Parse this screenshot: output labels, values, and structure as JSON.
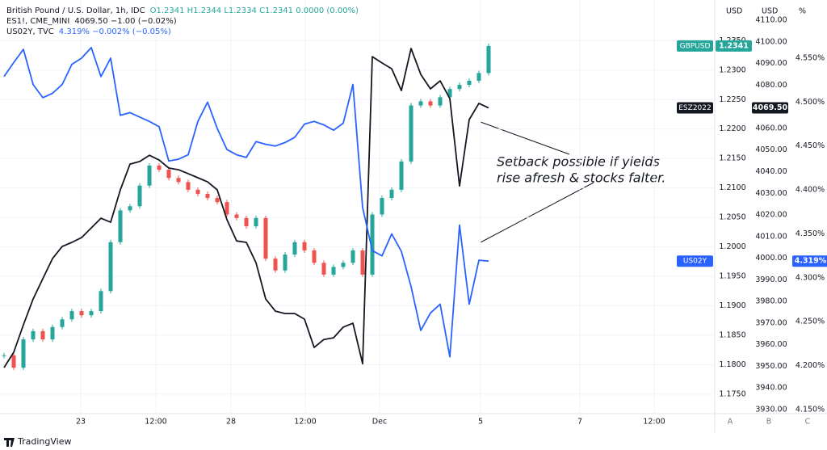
{
  "chart_data": {
    "type": "line",
    "legend_lines": [
      {
        "name": "British Pound / U.S. Dollar, 1h, IDC",
        "quote": "O1.2341 H1.2344 L1.2334 C1.2341 0.0000 (0.00%)",
        "color": "#26a69a"
      },
      {
        "name": "ES1!, CME_MINI",
        "quote": "4069.50 −1.00 (−0.02%)",
        "color": "#131722"
      },
      {
        "name": "US02Y, TVC",
        "quote": "4.319% −0.002% (−0.05%)",
        "color": "#2962ff"
      }
    ],
    "x_labels": [
      "23",
      "12:00",
      "28",
      "12:00",
      "Dec",
      "5",
      "7",
      "12:00"
    ],
    "axis_units": [
      "USD",
      "USD",
      "%"
    ],
    "axis_buttons": [
      "A",
      "B",
      "C"
    ],
    "annotations": [
      "Setback possible if yields",
      "rise afresh & stocks falter."
    ],
    "watermark": "TradingView",
    "grid": true,
    "ylim": [
      1.1717,
      1.2419
    ],
    "yticks": [
      {
        "value": 1.175,
        "label": "1.1750"
      },
      {
        "value": 1.18,
        "label": "1.1800"
      },
      {
        "value": 1.185,
        "label": "1.1850"
      },
      {
        "value": 1.19,
        "label": "1.1900"
      },
      {
        "value": 1.195,
        "label": "1.1950"
      },
      {
        "value": 1.2,
        "label": "1.2000"
      },
      {
        "value": 1.205,
        "label": "1.2050"
      },
      {
        "value": 1.21,
        "label": "1.2100"
      },
      {
        "value": 1.215,
        "label": "1.2150"
      },
      {
        "value": 1.22,
        "label": "1.2200"
      },
      {
        "value": 1.225,
        "label": "1.2250"
      },
      {
        "value": 1.23,
        "label": "1.2300"
      },
      {
        "value": 1.235,
        "label": "1.2350"
      }
    ],
    "y2lim": [
      3928.1,
      4119.4
    ],
    "y2ticks": [
      {
        "value": 3930,
        "label": "3930.00"
      },
      {
        "value": 3940,
        "label": "3940.00"
      },
      {
        "value": 3950,
        "label": "3950.00"
      },
      {
        "value": 3960,
        "label": "3960.00"
      },
      {
        "value": 3970,
        "label": "3970.00"
      },
      {
        "value": 3980,
        "label": "3980.00"
      },
      {
        "value": 3990,
        "label": "3990.00"
      },
      {
        "value": 4000,
        "label": "4000.00"
      },
      {
        "value": 4010,
        "label": "4010.00"
      },
      {
        "value": 4020,
        "label": "4020.00"
      },
      {
        "value": 4030,
        "label": "4030.00"
      },
      {
        "value": 4040,
        "label": "4040.00"
      },
      {
        "value": 4050,
        "label": "4050.00"
      },
      {
        "value": 4060,
        "label": "4060.00"
      },
      {
        "value": 4070,
        "label": "4070.00"
      },
      {
        "value": 4080,
        "label": "4080.00"
      },
      {
        "value": 4090,
        "label": "4090.00"
      },
      {
        "value": 4100,
        "label": "4100.00"
      },
      {
        "value": 4110,
        "label": "4110.00"
      }
    ],
    "y3lim": [
      4.1454,
      4.6162
    ],
    "y3ticks": [
      {
        "value": 4.15,
        "label": "4.150%"
      },
      {
        "value": 4.2,
        "label": "4.200%"
      },
      {
        "value": 4.25,
        "label": "4.250%"
      },
      {
        "value": 4.3,
        "label": "4.300%"
      },
      {
        "value": 4.35,
        "label": "4.350%"
      },
      {
        "value": 4.4,
        "label": "4.400%"
      },
      {
        "value": 4.45,
        "label": "4.450%"
      },
      {
        "value": 4.5,
        "label": "4.500%"
      },
      {
        "value": 4.55,
        "label": "4.550%"
      }
    ],
    "series": [
      {
        "name": "GBPUSD",
        "type": "candlestick",
        "axis": "y",
        "color": "#26a69a",
        "down_color": "#ef5350",
        "last_label": "1.2341",
        "values": [
          1.1816,
          1.1795,
          1.1843,
          1.1857,
          1.1843,
          1.1864,
          1.1877,
          1.1891,
          1.1884,
          1.1891,
          1.1925,
          1.2008,
          1.2062,
          1.2069,
          1.2104,
          1.2138,
          1.2131,
          1.2117,
          1.211,
          1.2097,
          1.209,
          1.2083,
          1.2076,
          1.2055,
          1.2049,
          1.2035,
          1.2049,
          1.198,
          1.196,
          1.1987,
          1.2008,
          1.1994,
          1.1973,
          1.1953,
          1.1966,
          1.1973,
          1.1994,
          1.1953,
          1.2055,
          1.2083,
          1.2097,
          1.2145,
          1.224,
          1.2247,
          1.224,
          1.2254,
          1.2268,
          1.2275,
          1.2282,
          1.2295,
          1.2341
        ]
      },
      {
        "name": "ESZ2022",
        "type": "line",
        "axis": "y2",
        "color": "#131722",
        "last_label": "4069.50",
        "values": [
          3949.4,
          3956.5,
          3969.2,
          3981.1,
          3990.5,
          3999.8,
          4005.4,
          4007.3,
          4009.5,
          4014.0,
          4018.5,
          4016.6,
          4031.6,
          4043.5,
          4044.7,
          4047.6,
          4045.4,
          4041.7,
          4040.9,
          4039.1,
          4037.2,
          4035.3,
          4031.6,
          4017.8,
          4008.0,
          4007.3,
          3997.9,
          3981.1,
          3975.5,
          3974.4,
          3974.4,
          3971.8,
          3958.7,
          3962.4,
          3963.2,
          3968.1,
          3969.9,
          3951.2,
          4093.2,
          4090.3,
          4087.6,
          4077.5,
          4097.0,
          4085.0,
          4078.3,
          4082.0,
          4073.8,
          4033.4,
          4064.1,
          4071.6,
          4069.5
        ]
      },
      {
        "name": "US02Y",
        "type": "line",
        "axis": "y3",
        "color": "#2962ff",
        "last_label": "4.319%",
        "values": [
          4.529,
          4.545,
          4.56,
          4.52,
          4.505,
          4.51,
          4.52,
          4.543,
          4.55,
          4.562,
          4.529,
          4.55,
          4.485,
          4.488,
          4.483,
          4.478,
          4.472,
          4.433,
          4.435,
          4.44,
          4.478,
          4.5,
          4.47,
          4.446,
          4.44,
          4.437,
          4.455,
          4.452,
          4.45,
          4.454,
          4.46,
          4.475,
          4.478,
          4.474,
          4.468,
          4.476,
          4.52,
          4.38,
          4.331,
          4.325,
          4.35,
          4.33,
          4.29,
          4.24,
          4.26,
          4.27,
          4.21,
          4.36,
          4.27,
          4.32,
          4.319
        ]
      }
    ]
  }
}
